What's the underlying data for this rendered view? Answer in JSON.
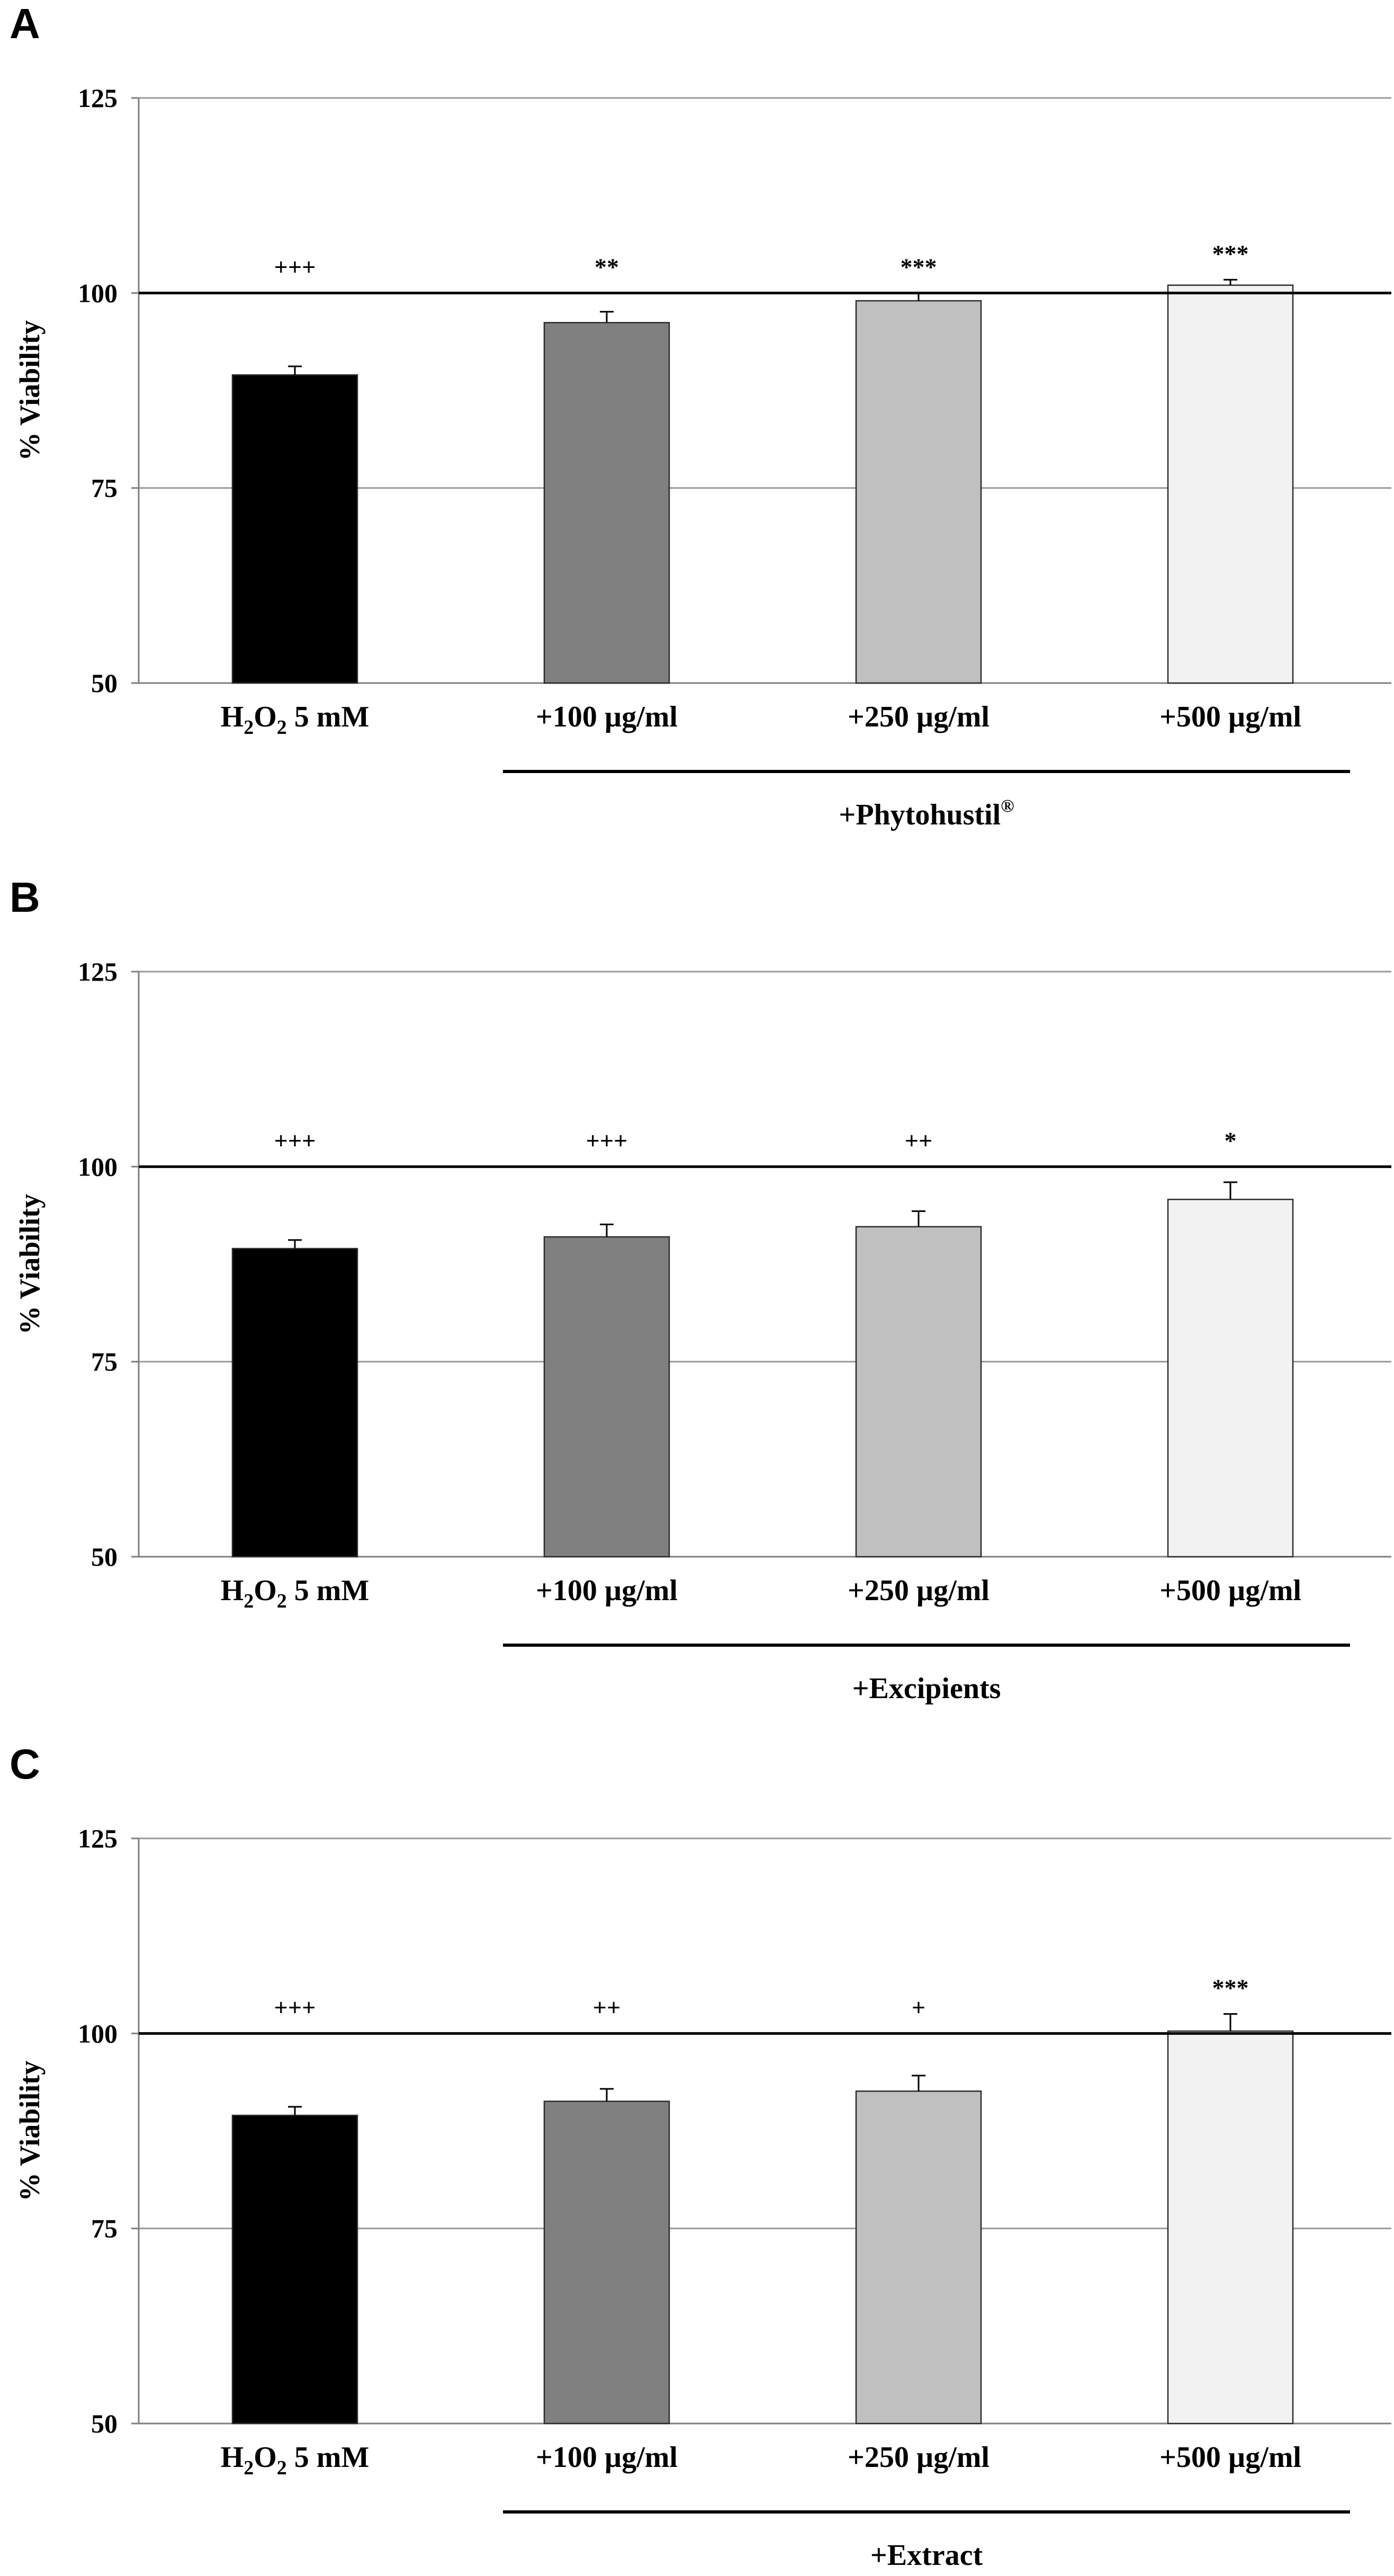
{
  "chart_data": [
    {
      "panel": "A",
      "type": "bar",
      "ylabel": "% Viability",
      "ylim": [
        50,
        125
      ],
      "yticks": [
        50,
        75,
        100,
        125
      ],
      "gridlines": [
        75,
        100,
        125
      ],
      "reference_line": 100,
      "categories": [
        {
          "main": "H",
          "sub1": "2",
          "mid": "O",
          "sub2": "2",
          "rest": " 5 mM"
        },
        {
          "main": "+100 µg/ml"
        },
        {
          "main": "+250 µg/ml"
        },
        {
          "main": "+500 µg/ml"
        }
      ],
      "values": [
        89.5,
        96.2,
        99.0,
        101.0
      ],
      "errors": [
        1.1,
        1.4,
        1.0,
        0.7
      ],
      "significance": [
        "+++",
        "**",
        "***",
        "***"
      ],
      "bar_colors": [
        "#000000",
        "#808080",
        "#c0c0c0",
        "#f2f2f2"
      ],
      "group_label": "+Phytohustil",
      "group_label_sup": "®"
    },
    {
      "panel": "B",
      "type": "bar",
      "ylabel": "% Viability",
      "ylim": [
        50,
        125
      ],
      "yticks": [
        50,
        75,
        100,
        125
      ],
      "gridlines": [
        75,
        100,
        125
      ],
      "reference_line": 100,
      "categories": [
        {
          "main": "H",
          "sub1": "2",
          "mid": "O",
          "sub2": "2",
          "rest": " 5 mM"
        },
        {
          "main": "+100 µg/ml"
        },
        {
          "main": "+250 µg/ml"
        },
        {
          "main": "+500 µg/ml"
        }
      ],
      "values": [
        89.5,
        91.0,
        92.3,
        95.8
      ],
      "errors": [
        1.1,
        1.6,
        2.0,
        2.2
      ],
      "significance": [
        "+++",
        "+++",
        "++",
        "*"
      ],
      "bar_colors": [
        "#000000",
        "#808080",
        "#c0c0c0",
        "#f2f2f2"
      ],
      "group_label": "+Excipients",
      "group_label_sup": ""
    },
    {
      "panel": "C",
      "type": "bar",
      "ylabel": "% Viability",
      "ylim": [
        50,
        125
      ],
      "yticks": [
        50,
        75,
        100,
        125
      ],
      "gridlines": [
        75,
        100,
        125
      ],
      "reference_line": 100,
      "categories": [
        {
          "main": "H",
          "sub1": "2",
          "mid": "O",
          "sub2": "2",
          "rest": " 5 mM"
        },
        {
          "main": "+100 µg/ml"
        },
        {
          "main": "+250 µg/ml"
        },
        {
          "main": "+500 µg/ml"
        }
      ],
      "values": [
        89.5,
        91.3,
        92.6,
        100.3
      ],
      "errors": [
        1.1,
        1.6,
        2.0,
        2.2
      ],
      "significance": [
        "+++",
        "++",
        "+",
        "***"
      ],
      "bar_colors": [
        "#000000",
        "#808080",
        "#c0c0c0",
        "#f2f2f2"
      ],
      "group_label": "+Extract",
      "group_label_sup": ""
    }
  ]
}
